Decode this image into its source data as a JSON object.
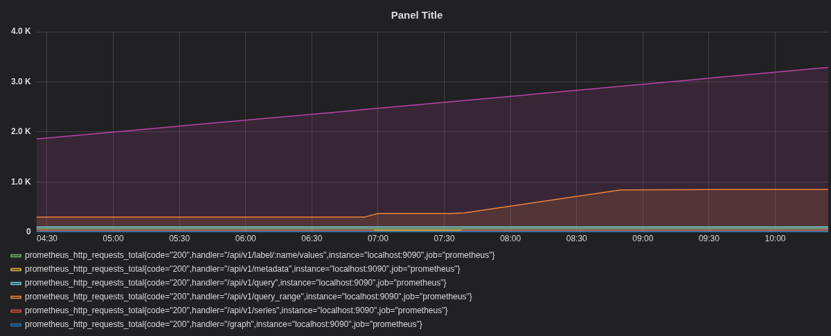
{
  "chart_data": {
    "type": "area",
    "title": "Panel Title",
    "xlim": [
      4.42,
      10.4
    ],
    "xticks": [
      {
        "value": 4.5,
        "label": "04:30"
      },
      {
        "value": 5,
        "label": "05:00"
      },
      {
        "value": 5.5,
        "label": "05:30"
      },
      {
        "value": 6,
        "label": "06:00"
      },
      {
        "value": 6.5,
        "label": "06:30"
      },
      {
        "value": 7,
        "label": "07:00"
      },
      {
        "value": 7.5,
        "label": "07:30"
      },
      {
        "value": 8,
        "label": "08:00"
      },
      {
        "value": 8.5,
        "label": "08:30"
      },
      {
        "value": 9,
        "label": "09:00"
      },
      {
        "value": 9.5,
        "label": "09:30"
      },
      {
        "value": 10,
        "label": "10:00"
      }
    ],
    "ylim": [
      0,
      4000
    ],
    "yticks": [
      {
        "value": 0,
        "label": "0"
      },
      {
        "value": 1000,
        "label": "1.0 K"
      },
      {
        "value": 2000,
        "label": "2.0 K"
      },
      {
        "value": 3000,
        "label": "3.0 K"
      },
      {
        "value": 4000,
        "label": "4.0 K"
      }
    ],
    "grid": true,
    "legend": "bottom",
    "marker": "none",
    "line_style": "solid",
    "series": [
      {
        "name": "prometheus_http_requests_total{code=\"200\",handler=\"/api/v1/label/:name/values\",instance=\"localhost:9090\",job=\"prometheus\"}",
        "color": "#7eb26d",
        "type": "line",
        "x": [
          4.42,
          10.4
        ],
        "values": [
          70,
          70
        ]
      },
      {
        "name": "prometheus_http_requests_total{code=\"200\",handler=\"/api/v1/metadata\",instance=\"localhost:9090\",job=\"prometheus\"}",
        "color": "#eab839",
        "type": "line",
        "x": [
          6.97,
          7.63
        ],
        "values": [
          40,
          40
        ]
      },
      {
        "name": "prometheus_http_requests_total{code=\"200\",handler=\"/api/v1/query\",instance=\"localhost:9090\",job=\"prometheus\"}",
        "color": "#6ed0e0",
        "x": [
          4.42,
          10.4
        ],
        "values": [
          100,
          100
        ]
      },
      {
        "name": "prometheus_http_requests_total{code=\"200\",handler=\"/api/v1/query_range\",instance=\"localhost:9090\",job=\"prometheus\"}",
        "color": "#ef843c",
        "x": [
          4.42,
          6.9,
          7.0,
          7.55,
          7.65,
          8.83,
          9.6,
          10.4
        ],
        "values": [
          300,
          300,
          370,
          370,
          380,
          840,
          850,
          850
        ]
      },
      {
        "name": "prometheus_http_requests_total{code=\"200\",handler=\"/api/v1/series\",instance=\"localhost:9090\",job=\"prometheus\"}",
        "color": "#e24d42",
        "type": "line",
        "x": [
          4.42,
          10.4
        ],
        "values": [
          40,
          40
        ]
      },
      {
        "name": "prometheus_http_requests_total{code=\"200\",handler=\"/graph\",instance=\"localhost:9090\",job=\"prometheus\"}",
        "color": "#1f78c1",
        "type": "line",
        "x": [
          4.42,
          10.4
        ],
        "values": [
          10,
          10
        ]
      },
      {
        "color": "#ba43a9",
        "x": [
          4.42,
          7.5,
          10.4
        ],
        "values": [
          1860,
          2590,
          3290
        ]
      }
    ]
  }
}
